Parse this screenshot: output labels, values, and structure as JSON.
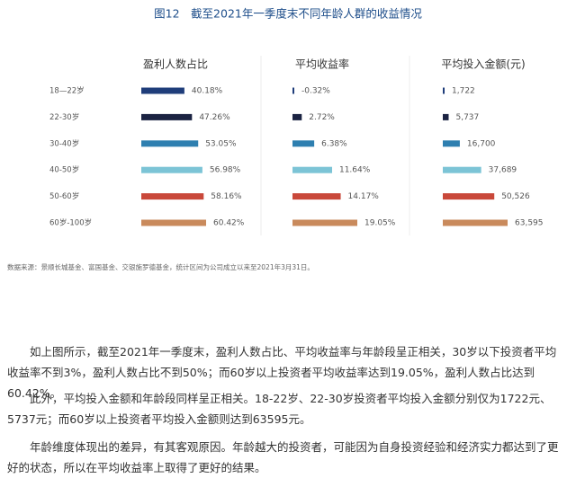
{
  "title": "图12　截至2021年一季度末不同年龄人群的收益情况",
  "chart_data": [
    {
      "type": "hbar",
      "title": "盈利人数占比",
      "categories": [
        "18—22岁",
        "22-30岁",
        "30-40岁",
        "40-50岁",
        "50-60岁",
        "60岁-100岁"
      ],
      "values": [
        40.18,
        47.26,
        53.05,
        56.98,
        58.16,
        60.42
      ],
      "value_labels": [
        "40.18%",
        "47.26%",
        "53.05%",
        "56.98%",
        "58.16%",
        "60.42%"
      ],
      "colors": [
        "#1f3d7a",
        "#1b2342",
        "#2e7fb0",
        "#7cc4d6",
        "#c9483a",
        "#c98a5c"
      ]
    },
    {
      "type": "hbar",
      "title": "平均收益率",
      "values": [
        -0.32,
        2.72,
        6.38,
        11.64,
        14.17,
        19.05
      ],
      "value_labels": [
        "-0.32%",
        "2.72%",
        "6.38%",
        "11.64%",
        "14.17%",
        "19.05%"
      ],
      "colors": [
        "#1f3d7a",
        "#1b2342",
        "#2e7fb0",
        "#7cc4d6",
        "#c9483a",
        "#c98a5c"
      ]
    },
    {
      "type": "hbar",
      "title": "平均投入金额(元)",
      "values": [
        1722,
        5737,
        16700,
        37689,
        50526,
        63595
      ],
      "value_labels": [
        "1,722",
        "5,737",
        "16,700",
        "37,689",
        "50,526",
        "63,595"
      ],
      "colors": [
        "#1f3d7a",
        "#1b2342",
        "#2e7fb0",
        "#7cc4d6",
        "#c9483a",
        "#c98a5c"
      ]
    }
  ],
  "source": "数据来源：景顺长城基金、富国基金、交银施罗德基金，统计区间为公司成立以来至2021年3月31日。",
  "paragraphs": [
    "如上图所示，截至2021年一季度末，盈利人数占比、平均收益率与年龄段呈正相关，30岁以下投资者平均收益率不到3%，盈利人数占比不到50%；而60岁以上投资者平均收益率达到19.05%，盈利人数占比达到60.42%。",
    "此外，平均投入金额和年龄段同样呈正相关。18-22岁、22-30岁投资者平均投入金额分别仅为1722元、5737元；而60岁以上投资者平均投入金额则达到63595元。",
    "年龄维度体现出的差异，有其客观原因。年龄越大的投资者，可能因为自身投资经验和经济实力都达到了更好的状态，所以在平均收益率上取得了更好的结果。"
  ]
}
